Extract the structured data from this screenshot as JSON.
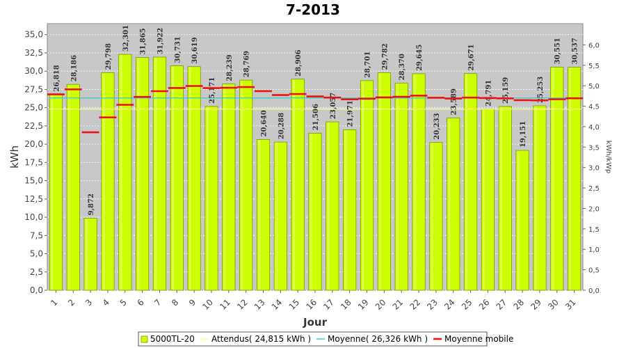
{
  "chart_data": {
    "type": "bar",
    "title": "7-2013",
    "xlabel": "Jour",
    "ylabel": "kWh",
    "y2label": "kWh/kWp",
    "ylim": [
      0,
      36.5
    ],
    "y_ticks": [
      "0,0",
      "2,5",
      "5,0",
      "7,5",
      "10,0",
      "12,5",
      "15,0",
      "17,5",
      "20,0",
      "22,5",
      "25,0",
      "27,5",
      "30,0",
      "32,5",
      "35,0"
    ],
    "y2_ticks": [
      "0,0",
      "0,5",
      "1,0",
      "1,5",
      "2,0",
      "2,5",
      "3,0",
      "3,5",
      "4,0",
      "4,5",
      "5,0",
      "5,5",
      "6,0"
    ],
    "categories": [
      "1",
      "2",
      "3",
      "4",
      "5",
      "6",
      "7",
      "8",
      "9",
      "10",
      "11",
      "12",
      "13",
      "14",
      "15",
      "16",
      "17",
      "18",
      "19",
      "20",
      "21",
      "22",
      "23",
      "24",
      "25",
      "26",
      "27",
      "28",
      "29",
      "30",
      "31"
    ],
    "series": [
      {
        "name": "5000TL-20",
        "type": "bar",
        "color": "#ccff00",
        "values": [
          26.818,
          28.186,
          9.872,
          29.798,
          32.301,
          31.865,
          31.922,
          30.731,
          30.619,
          25.171,
          28.239,
          28.769,
          20.64,
          20.288,
          28.906,
          21.506,
          23.057,
          21.971,
          28.701,
          29.782,
          28.37,
          29.645,
          20.233,
          23.589,
          29.671,
          24.791,
          25.159,
          19.151,
          25.253,
          30.551,
          30.537
        ],
        "labels": [
          "26,818",
          "28,186",
          "9,872",
          "29,798",
          "32,301",
          "31,865",
          "31,922",
          "30,731",
          "30,619",
          "25,171",
          "28,239",
          "28,769",
          "20,640",
          "20,288",
          "28,906",
          "21,506",
          "23,057",
          "21,971",
          "28,701",
          "29,782",
          "28,370",
          "29,645",
          "20,233",
          "23,589",
          "29,671",
          "24,791",
          "25,159",
          "19,151",
          "25,253",
          "30,551",
          "30,537"
        ]
      },
      {
        "name": "Attendus( 24,815 kWh )",
        "type": "line",
        "color": "#ffff99",
        "value": 24.815
      },
      {
        "name": "Moyenne( 26,326 kWh )",
        "type": "line",
        "color": "#33cccc",
        "value": 26.326
      },
      {
        "name": "Moyenne mobile",
        "type": "step",
        "color": "#ee1111",
        "values": [
          26.818,
          27.502,
          21.625,
          23.669,
          25.395,
          26.474,
          27.255,
          27.69,
          27.96,
          27.681,
          27.731,
          27.817,
          27.265,
          26.725,
          26.87,
          26.534,
          26.383,
          26.138,
          26.225,
          26.403,
          26.492,
          26.64,
          26.36,
          26.245,
          26.381,
          26.32,
          26.276,
          26.021,
          25.998,
          26.149,
          26.287
        ]
      }
    ],
    "legend_position": "bottom-center",
    "grid": true
  }
}
